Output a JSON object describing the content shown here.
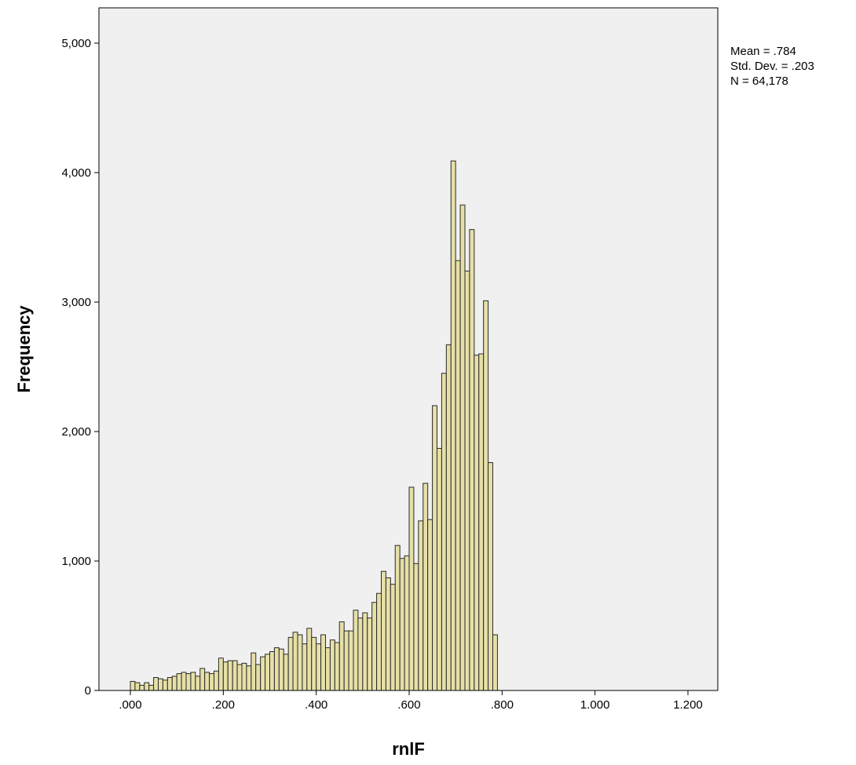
{
  "chart_data": {
    "type": "bar",
    "subtype": "histogram",
    "title": "",
    "xlabel": "rnlF",
    "ylabel": "Frequency",
    "xlim": [
      -0.1,
      1.25
    ],
    "ylim": [
      0,
      5200
    ],
    "x_ticks": [
      {
        "value": 0.0,
        "label": ".000"
      },
      {
        "value": 0.2,
        "label": ".200"
      },
      {
        "value": 0.4,
        "label": ".400"
      },
      {
        "value": 0.6,
        "label": ".600"
      },
      {
        "value": 0.8,
        "label": ".800"
      },
      {
        "value": 1.0,
        "label": "1.000"
      },
      {
        "value": 1.2,
        "label": "1.200"
      }
    ],
    "y_ticks": [
      {
        "value": 0,
        "label": "0"
      },
      {
        "value": 1000,
        "label": "1,000"
      },
      {
        "value": 2000,
        "label": "2,000"
      },
      {
        "value": 3000,
        "label": "3,000"
      },
      {
        "value": 4000,
        "label": "4,000"
      },
      {
        "value": 5000,
        "label": "5,000"
      }
    ],
    "bin_start": 0.0,
    "bin_width": 0.01,
    "values": [
      70,
      60,
      40,
      60,
      40,
      100,
      90,
      80,
      100,
      110,
      130,
      140,
      130,
      140,
      110,
      170,
      140,
      130,
      150,
      250,
      220,
      230,
      230,
      200,
      210,
      190,
      290,
      200,
      260,
      280,
      300,
      330,
      320,
      280,
      410,
      450,
      430,
      360,
      480,
      410,
      360,
      430,
      330,
      390,
      370,
      530,
      460,
      460,
      620,
      560,
      600,
      560,
      680,
      750,
      920,
      870,
      820,
      1120,
      1020,
      1040,
      1570,
      980,
      1310,
      1600,
      1320,
      2200,
      1870,
      2450,
      2670,
      4090,
      3320,
      3750,
      3240,
      3560,
      2590,
      2600,
      3010,
      1760,
      430
    ],
    "grid": false,
    "background": "#f0f0f0",
    "bar_fill": "#e6e0a8",
    "bar_stroke": "#2a2a2a",
    "stats": [
      {
        "text": "Mean = .784"
      },
      {
        "text": "Std. Dev. = .203"
      },
      {
        "text": "N = 64,178"
      }
    ]
  }
}
